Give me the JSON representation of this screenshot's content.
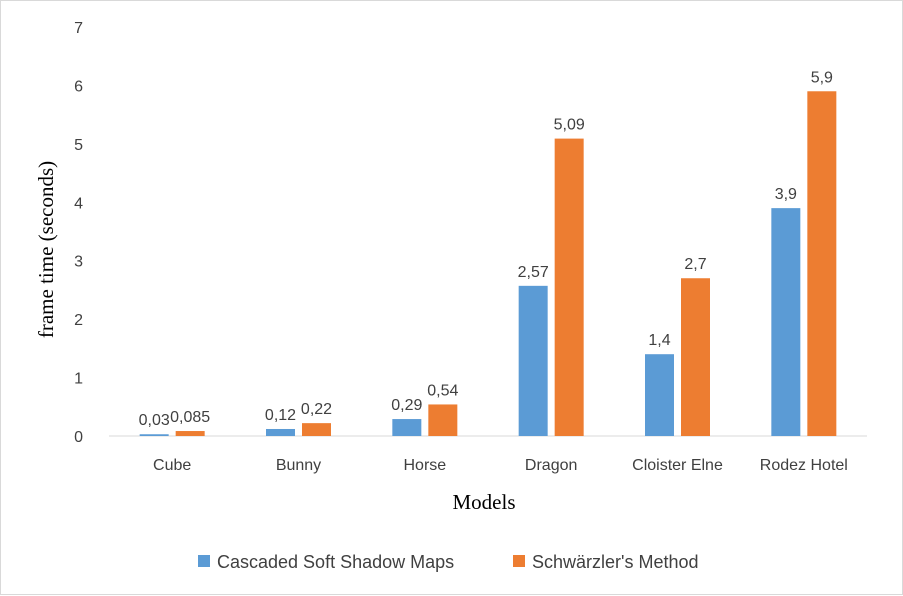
{
  "chart_data": {
    "type": "bar",
    "xlabel": "Models",
    "ylabel": "frame time (seconds)",
    "ylim": [
      0,
      7
    ],
    "yticks": [
      0,
      1,
      2,
      3,
      4,
      5,
      6,
      7
    ],
    "categories": [
      "Cube",
      "Bunny",
      "Horse",
      "Dragon",
      "Cloister Elne",
      "Rodez Hotel"
    ],
    "series": [
      {
        "name": "Cascaded Soft Shadow Maps",
        "color": "#5b9bd5",
        "values": [
          0.03,
          0.12,
          0.29,
          2.57,
          1.4,
          3.9
        ],
        "labels": [
          "0,03",
          "0,12",
          "0,29",
          "2,57",
          "1,4",
          "3,9"
        ]
      },
      {
        "name": "Schwärzler's Method",
        "color": "#ed7d31",
        "values": [
          0.085,
          0.22,
          0.54,
          5.09,
          2.7,
          5.9
        ],
        "labels": [
          "0,085",
          "0,22",
          "0,54",
          "5,09",
          "2,7",
          "5,9"
        ]
      }
    ],
    "grid": false,
    "legend_position": "bottom"
  }
}
